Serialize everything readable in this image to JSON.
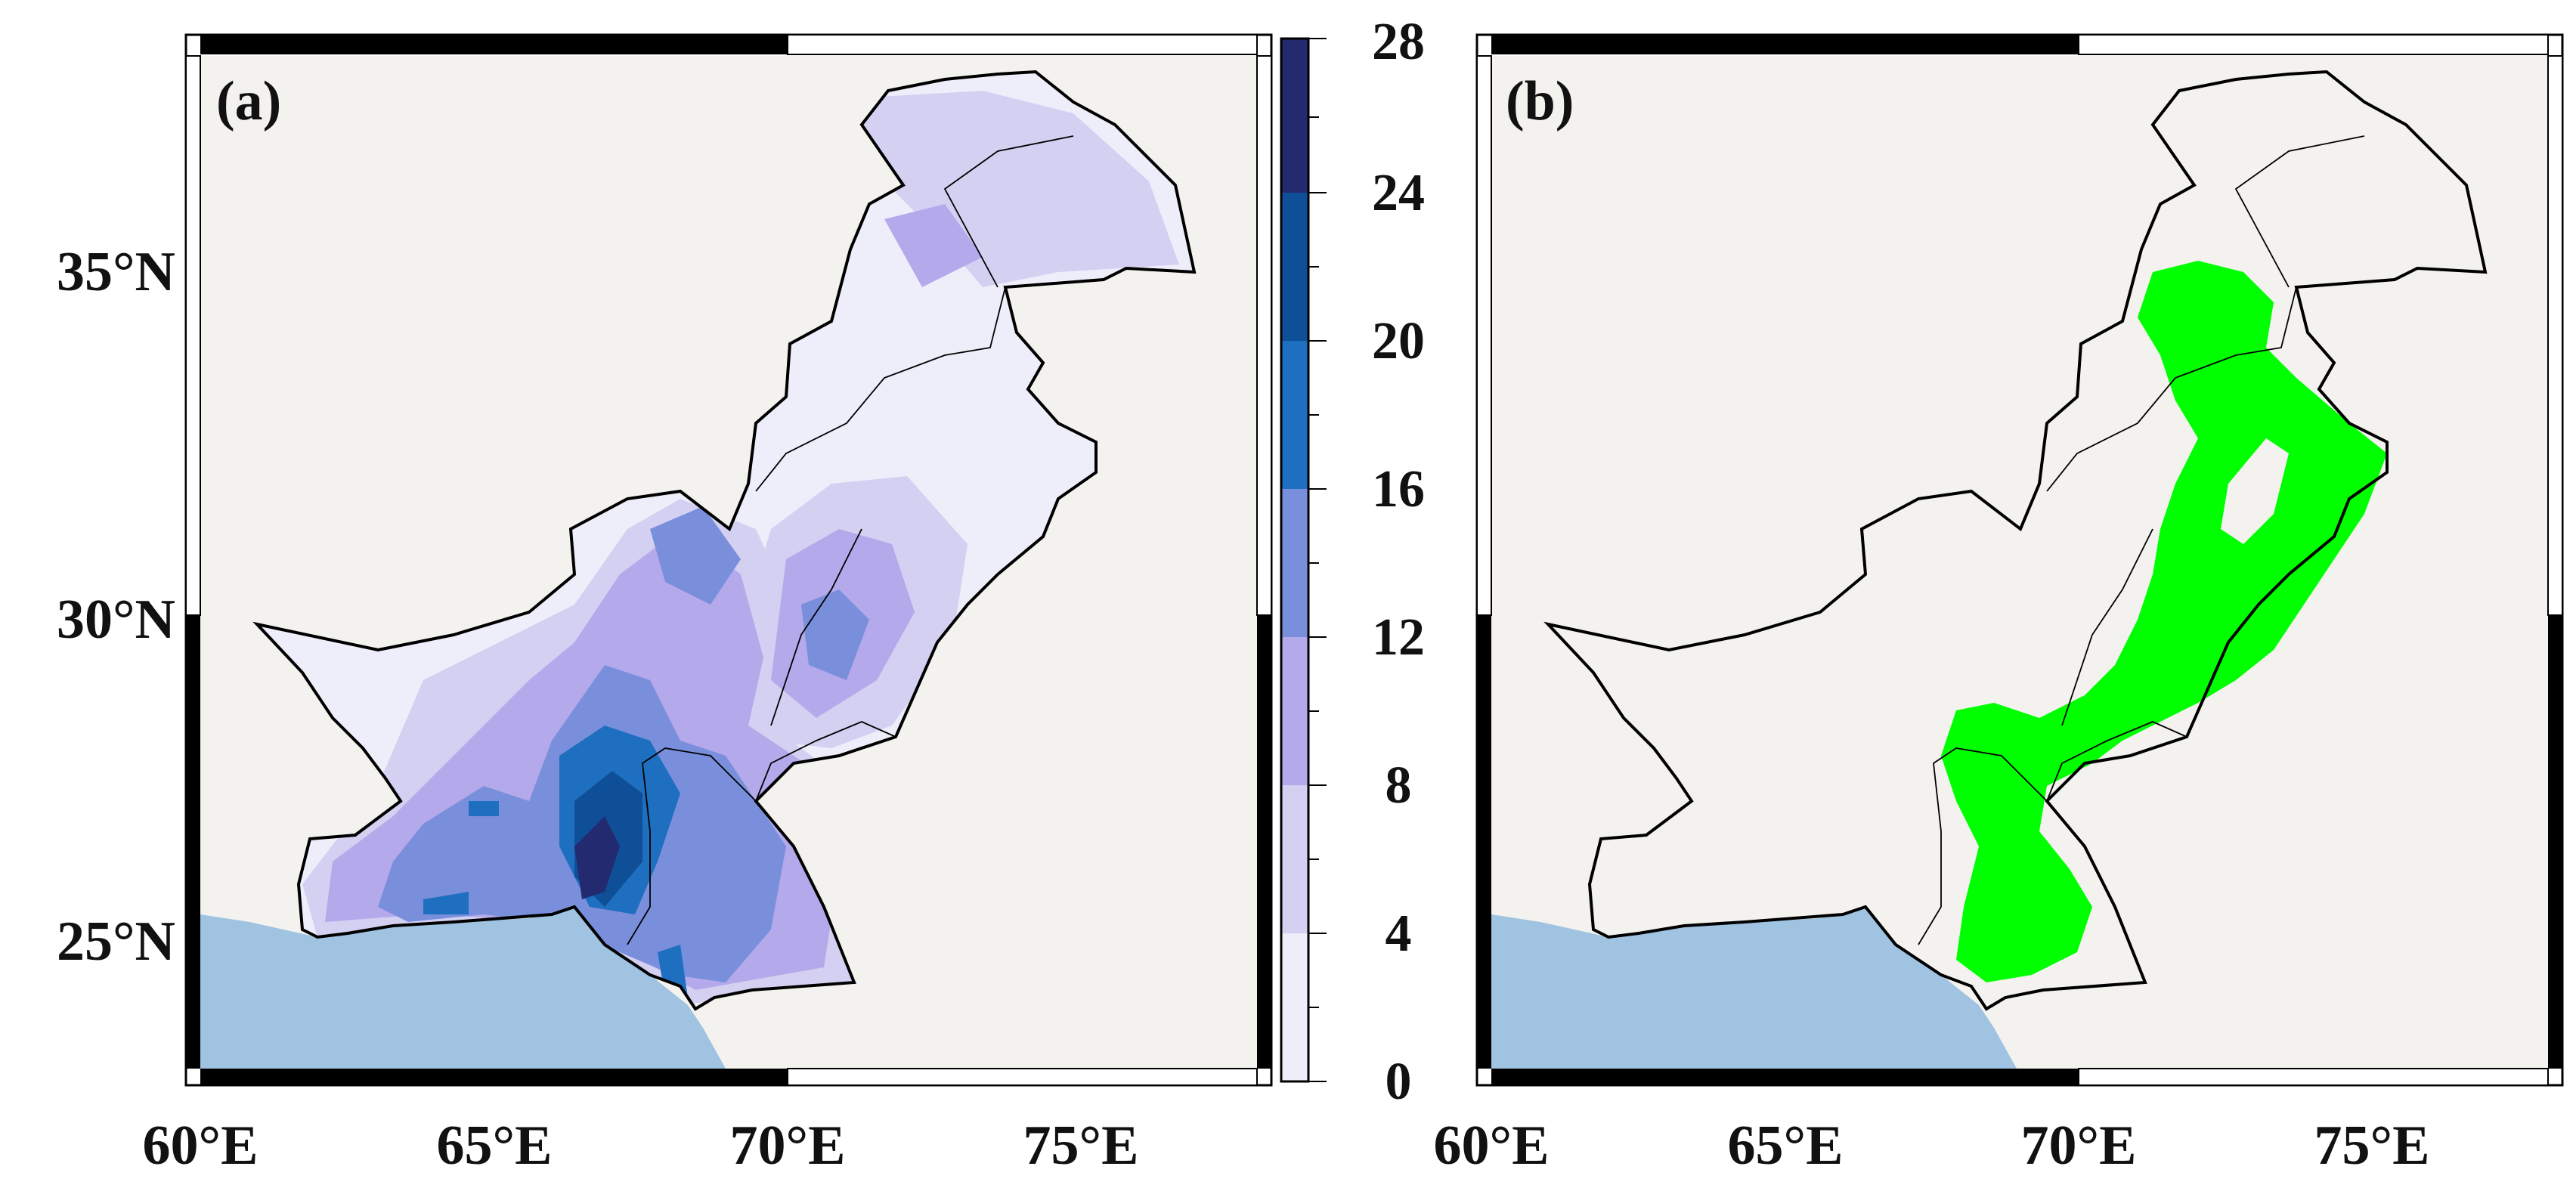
{
  "figure": {
    "panels": [
      {
        "id": "a",
        "label": "(a)",
        "lon_ticks": [
          "60°E",
          "65°E",
          "70°E",
          "75°E"
        ],
        "lat_ticks": [
          "35°N",
          "30°N",
          "25°N"
        ]
      },
      {
        "id": "b",
        "label": "(b)",
        "lon_ticks": [
          "60°E",
          "65°E",
          "70°E",
          "75°E"
        ]
      }
    ],
    "colorbar": {
      "tick_labels": [
        "28",
        "24",
        "20",
        "16",
        "12",
        "8",
        "4",
        "0"
      ],
      "colors": [
        "#eeeefa",
        "#d3d0f2",
        "#b4a9ea",
        "#7a8fdc",
        "#1f6fc0",
        "#0e4f97",
        "#232a70"
      ]
    },
    "colors": {
      "land": "#f3f2ee",
      "sea": "#9fc3e0",
      "highlight": "#00ff00",
      "frame": "#000000"
    }
  }
}
